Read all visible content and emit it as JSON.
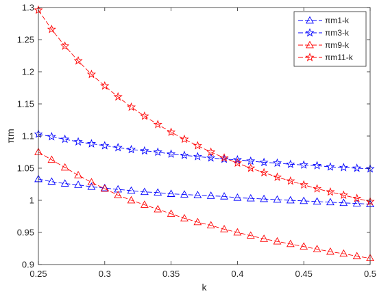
{
  "chart_data": {
    "type": "line",
    "title": "",
    "xlabel": "k",
    "ylabel": "πm",
    "xlim": [
      0.25,
      0.5
    ],
    "ylim": [
      0.9,
      1.3
    ],
    "xticks": [
      0.25,
      0.3,
      0.35,
      0.4,
      0.45,
      0.5
    ],
    "yticks": [
      0.9,
      0.95,
      1,
      1.05,
      1.1,
      1.15,
      1.2,
      1.25,
      1.3
    ],
    "xtick_labels": [
      "0.25",
      "0.3",
      "0.35",
      "0.4",
      "0.45",
      "0.5"
    ],
    "ytick_labels": [
      "0.9",
      "0.95",
      "1",
      "1.05",
      "1.1",
      "1.15",
      "1.2",
      "1.25",
      "1.3"
    ],
    "grid": false,
    "legend_position": "top-right",
    "x": [
      0.25,
      0.26,
      0.27,
      0.28,
      0.29,
      0.3,
      0.31,
      0.32,
      0.33,
      0.34,
      0.35,
      0.36,
      0.37,
      0.38,
      0.39,
      0.4,
      0.41,
      0.42,
      0.43,
      0.44,
      0.45,
      0.46,
      0.47,
      0.48,
      0.49,
      0.5
    ],
    "series": [
      {
        "name": "πm1-k",
        "color": "#0000ff",
        "linestyle": "dashed",
        "marker": "triangle",
        "values": [
          1.033,
          1.029,
          1.026,
          1.024,
          1.021,
          1.019,
          1.017,
          1.015,
          1.013,
          1.012,
          1.01,
          1.009,
          1.008,
          1.007,
          1.006,
          1.004,
          1.003,
          1.002,
          1.001,
          1.0,
          0.999,
          0.998,
          0.997,
          0.996,
          0.995,
          0.994
        ]
      },
      {
        "name": "πm3-k",
        "color": "#0000ff",
        "linestyle": "dashed",
        "marker": "star",
        "values": [
          1.103,
          1.099,
          1.095,
          1.091,
          1.088,
          1.085,
          1.082,
          1.079,
          1.077,
          1.075,
          1.072,
          1.07,
          1.068,
          1.066,
          1.064,
          1.063,
          1.061,
          1.059,
          1.058,
          1.056,
          1.055,
          1.054,
          1.052,
          1.051,
          1.05,
          1.049
        ]
      },
      {
        "name": "πm9-k",
        "color": "#ff0000",
        "linestyle": "dashed",
        "marker": "triangle",
        "values": [
          1.075,
          1.063,
          1.051,
          1.039,
          1.028,
          1.018,
          1.008,
          1.0,
          0.993,
          0.986,
          0.979,
          0.972,
          0.966,
          0.961,
          0.955,
          0.95,
          0.945,
          0.94,
          0.936,
          0.932,
          0.928,
          0.924,
          0.92,
          0.917,
          0.913,
          0.91
        ]
      },
      {
        "name": "πm11-k",
        "color": "#ff0000",
        "linestyle": "dashed",
        "marker": "star",
        "values": [
          1.296,
          1.266,
          1.24,
          1.217,
          1.196,
          1.178,
          1.161,
          1.145,
          1.131,
          1.118,
          1.106,
          1.095,
          1.085,
          1.075,
          1.066,
          1.058,
          1.05,
          1.043,
          1.036,
          1.03,
          1.024,
          1.018,
          1.013,
          1.008,
          1.003,
          0.998
        ]
      }
    ]
  }
}
